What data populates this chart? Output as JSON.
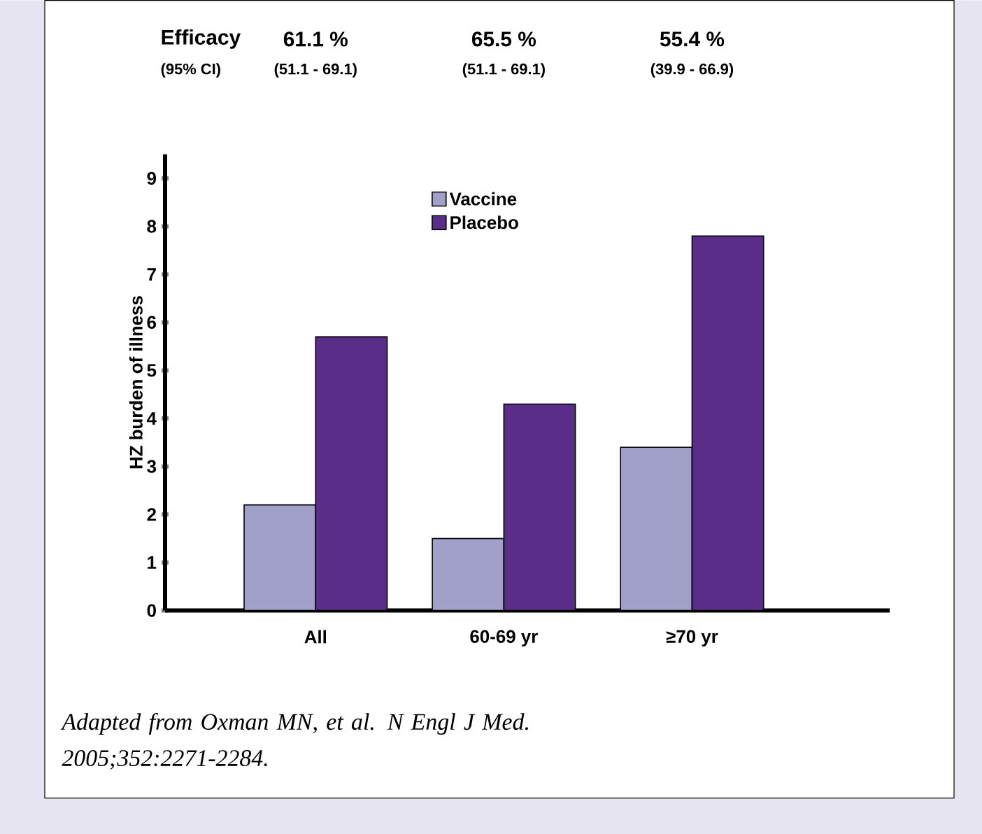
{
  "chart_data": {
    "type": "bar",
    "ylabel": "HZ burden of illness",
    "categories": [
      "All",
      "60-69 yr",
      "≥70 yr"
    ],
    "series": [
      {
        "name": "Vaccine",
        "color": "#a0a0c8",
        "values": [
          2.2,
          1.5,
          3.4
        ]
      },
      {
        "name": "Placebo",
        "color": "#5a2d88",
        "values": [
          5.7,
          4.3,
          7.8
        ]
      }
    ],
    "ylim": [
      0,
      9.5
    ],
    "yticks": [
      0,
      1,
      2,
      3,
      4,
      5,
      6,
      7,
      8,
      9
    ],
    "grid": false,
    "legend": "top",
    "annotations": [
      "Efficacy",
      "(95% CI)",
      "61.1 %",
      "(51.1 - 69.1)",
      "65.5 %",
      "(51.1 - 69.1)",
      "55.4 %",
      "(39.9 - 66.9)",
      "Adapted from Oxman MN, et al. N Engl J Med. 2005;352:2271-2284."
    ]
  }
}
